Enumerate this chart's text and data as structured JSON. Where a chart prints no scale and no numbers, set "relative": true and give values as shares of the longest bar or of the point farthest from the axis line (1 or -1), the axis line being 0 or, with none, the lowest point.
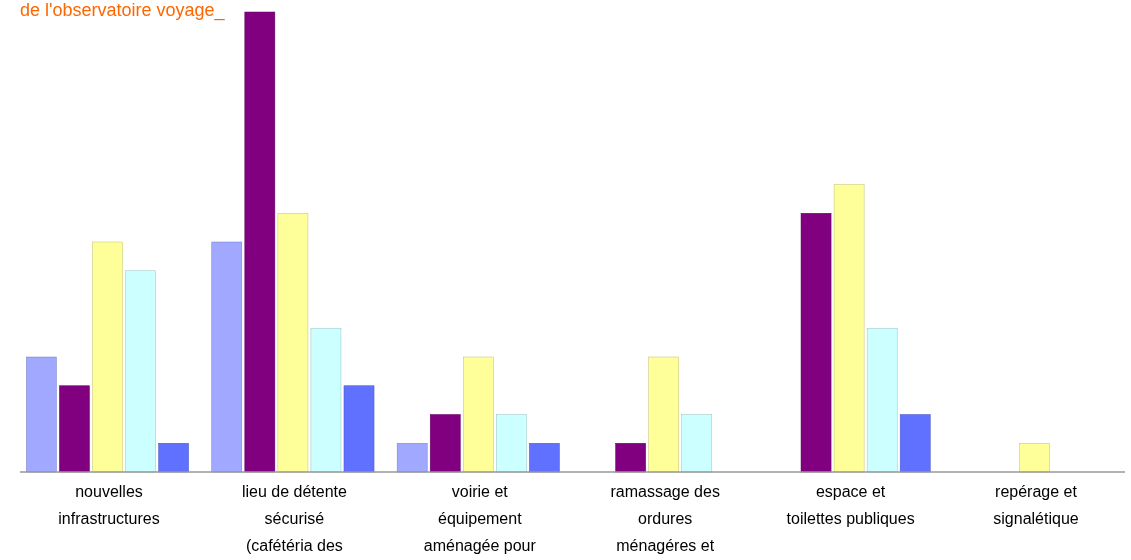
{
  "chart_data": {
    "type": "bar",
    "title": "de l'observatoire voyage_",
    "relative": true,
    "categories": [
      "nouvelles\ninfrastructures",
      "lieu de détente\nsécurisé\n(cafétéria des",
      "voirie et\néquipement\naménagée pour",
      "ramassage des\nordures\nménagéres et",
      "espace et\ntoilettes publiques",
      "repérage et\nsignalétique"
    ],
    "series": [
      {
        "color": "#a0a8ff",
        "values": [
          0.25,
          0.5,
          0.0625,
          0,
          0,
          0
        ]
      },
      {
        "color": "#800080",
        "values": [
          0.1875,
          1,
          0.125,
          0.0625,
          0.5625,
          0
        ]
      },
      {
        "color": "#ffff99",
        "values": [
          0.5,
          0.5625,
          0.25,
          0.25,
          0.625,
          0.0625
        ]
      },
      {
        "color": "#ccffff",
        "values": [
          0.4375,
          0.3125,
          0.125,
          0.125,
          0.3125,
          0
        ]
      },
      {
        "color": "#6070ff",
        "values": [
          0.0625,
          0.1875,
          0.0625,
          0,
          0.125,
          0
        ]
      }
    ]
  }
}
